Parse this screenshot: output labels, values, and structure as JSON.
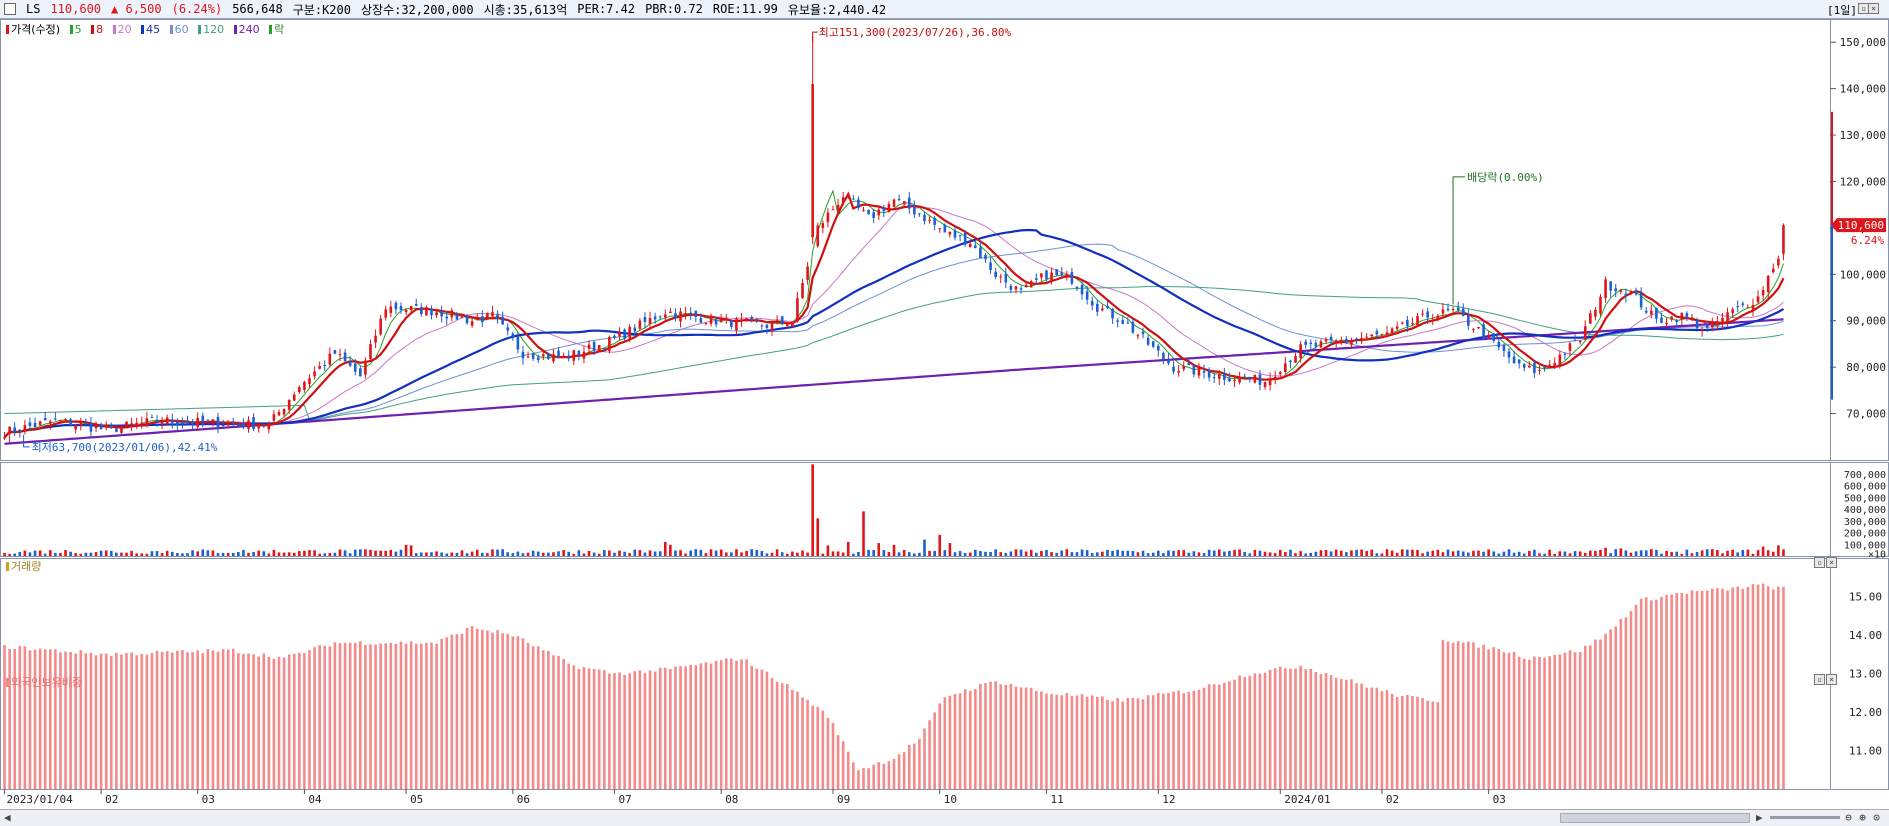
{
  "header": {
    "symbol": "LS",
    "price": "110,600",
    "change": "▲ 6,500",
    "change_pct": "(6.24%)",
    "volume": "566,648",
    "category": "구분:K200",
    "shares": "상장수:32,200,000",
    "market_cap": "시총:35,613억",
    "per": "PER:7.42",
    "pbr": "PBR:0.72",
    "roe": "ROE:11.99",
    "float_ratio": "유보율:2,440.42",
    "period": "[1일]"
  },
  "legend": {
    "price_label": "가격(수정)",
    "ma": [
      "5",
      "8",
      "20",
      "45",
      "60",
      "120",
      "240"
    ],
    "ex_label": "락"
  },
  "panels": {
    "volume_label": "거래량",
    "foreign_label": "외국인보유비중"
  },
  "annotations": {
    "high": "최고151,300(2023/07/26),36.80%",
    "low": "최저63,700(2023/01/06),42.41%",
    "dividend": "배당락(0.00%)",
    "last_price": "110,600",
    "last_pct": "6.24%"
  },
  "colors": {
    "up": "#e0151a",
    "down": "#1b5fd1",
    "ma5": "#2aa02a",
    "ma8": "#d01010",
    "ma20": "#c878c8",
    "ma45": "#1030c0",
    "ma60": "#7090d0",
    "ma120": "#40a080",
    "ma240": "#7020b0",
    "foreign": "#f48a8a"
  },
  "chart_data": [
    {
      "type": "candlestick",
      "name": "가격(수정)",
      "x_labels": [
        "2023/01/04",
        "02",
        "03",
        "04",
        "05",
        "06",
        "07",
        "08",
        "09",
        "10",
        "11",
        "12",
        "2024/01",
        "02",
        "03"
      ],
      "y_ticks": [
        "70,000",
        "80,000",
        "90,000",
        "100,000",
        "110,000",
        "120,000",
        "130,000",
        "140,000",
        "150,000"
      ],
      "ylim": [
        60000,
        155000
      ],
      "close_anchors": [
        [
          0,
          66000
        ],
        [
          10,
          68500
        ],
        [
          20,
          66500
        ],
        [
          30,
          68500
        ],
        [
          40,
          68000
        ],
        [
          52,
          67500
        ],
        [
          58,
          76000
        ],
        [
          65,
          83000
        ],
        [
          70,
          78000
        ],
        [
          75,
          93000
        ],
        [
          85,
          92000
        ],
        [
          92,
          90000
        ],
        [
          96,
          91000
        ],
        [
          102,
          83000
        ],
        [
          110,
          82000
        ],
        [
          120,
          86000
        ],
        [
          130,
          92000
        ],
        [
          140,
          90000
        ],
        [
          150,
          89000
        ],
        [
          155,
          90000
        ],
        [
          160,
          110000
        ],
        [
          165,
          117000
        ],
        [
          170,
          112000
        ],
        [
          175,
          116000
        ],
        [
          180,
          113000
        ],
        [
          185,
          109000
        ],
        [
          190,
          107000
        ],
        [
          195,
          100000
        ],
        [
          200,
          96000
        ],
        [
          205,
          100000
        ],
        [
          210,
          99000
        ],
        [
          215,
          93000
        ],
        [
          220,
          90000
        ],
        [
          225,
          85000
        ],
        [
          230,
          80000
        ],
        [
          240,
          78000
        ],
        [
          248,
          77000
        ],
        [
          255,
          84000
        ],
        [
          265,
          86000
        ],
        [
          272,
          87000
        ],
        [
          280,
          91000
        ],
        [
          285,
          92000
        ],
        [
          290,
          88000
        ],
        [
          298,
          80000
        ],
        [
          302,
          79000
        ],
        [
          310,
          86000
        ],
        [
          315,
          98000
        ],
        [
          320,
          96000
        ],
        [
          325,
          90000
        ],
        [
          330,
          91000
        ],
        [
          335,
          88000
        ],
        [
          340,
          92000
        ],
        [
          345,
          95000
        ],
        [
          349,
          104000
        ],
        [
          350,
          110600
        ]
      ],
      "high": {
        "value": 151300,
        "date": "2023/07/26"
      },
      "low": {
        "value": 63700,
        "date": "2023/01/06"
      },
      "last": 110600,
      "moving_averages": [
        "5",
        "8",
        "20",
        "45",
        "60",
        "120",
        "240"
      ]
    },
    {
      "type": "bar",
      "name": "거래량",
      "y_ticks": [
        "×10",
        "100,000",
        "200,000",
        "300,000",
        "400,000",
        "500,000",
        "600,000",
        "700,000"
      ],
      "ylim": [
        0,
        800000
      ],
      "typical": 45000,
      "spikes": [
        [
          159,
          780000
        ],
        [
          160,
          320000
        ],
        [
          162,
          90000
        ],
        [
          166,
          120000
        ],
        [
          169,
          380000
        ],
        [
          172,
          110000
        ],
        [
          175,
          95000
        ],
        [
          181,
          140000
        ],
        [
          184,
          180000
        ],
        [
          186,
          110000
        ],
        [
          80,
          90000
        ],
        [
          79,
          95000
        ],
        [
          130,
          120000
        ],
        [
          131,
          95000
        ],
        [
          315,
          70000
        ],
        [
          318,
          65000
        ],
        [
          346,
          80000
        ],
        [
          349,
          90000
        ]
      ]
    },
    {
      "type": "bar",
      "name": "외국인보유비중",
      "y_ticks": [
        "11.00",
        "12.00",
        "13.00",
        "14.00",
        "15.00"
      ],
      "ylim": [
        10.0,
        16.0
      ],
      "anchors": [
        [
          0,
          13.7
        ],
        [
          20,
          13.5
        ],
        [
          45,
          13.6
        ],
        [
          55,
          13.4
        ],
        [
          65,
          13.8
        ],
        [
          85,
          13.8
        ],
        [
          92,
          14.2
        ],
        [
          100,
          14.0
        ],
        [
          112,
          13.2
        ],
        [
          120,
          13.0
        ],
        [
          130,
          13.1
        ],
        [
          145,
          13.4
        ],
        [
          155,
          12.6
        ],
        [
          162,
          11.9
        ],
        [
          168,
          10.5
        ],
        [
          175,
          10.8
        ],
        [
          180,
          11.3
        ],
        [
          185,
          12.4
        ],
        [
          195,
          12.8
        ],
        [
          205,
          12.5
        ],
        [
          220,
          12.3
        ],
        [
          235,
          12.6
        ],
        [
          245,
          13.0
        ],
        [
          255,
          13.2
        ],
        [
          265,
          12.8
        ],
        [
          275,
          12.4
        ],
        [
          282,
          12.3
        ],
        [
          283,
          13.9
        ],
        [
          295,
          13.6
        ],
        [
          300,
          13.4
        ],
        [
          310,
          13.6
        ],
        [
          315,
          14.0
        ],
        [
          322,
          14.9
        ],
        [
          330,
          15.1
        ],
        [
          340,
          15.2
        ],
        [
          345,
          15.3
        ],
        [
          350,
          15.2
        ]
      ]
    }
  ]
}
